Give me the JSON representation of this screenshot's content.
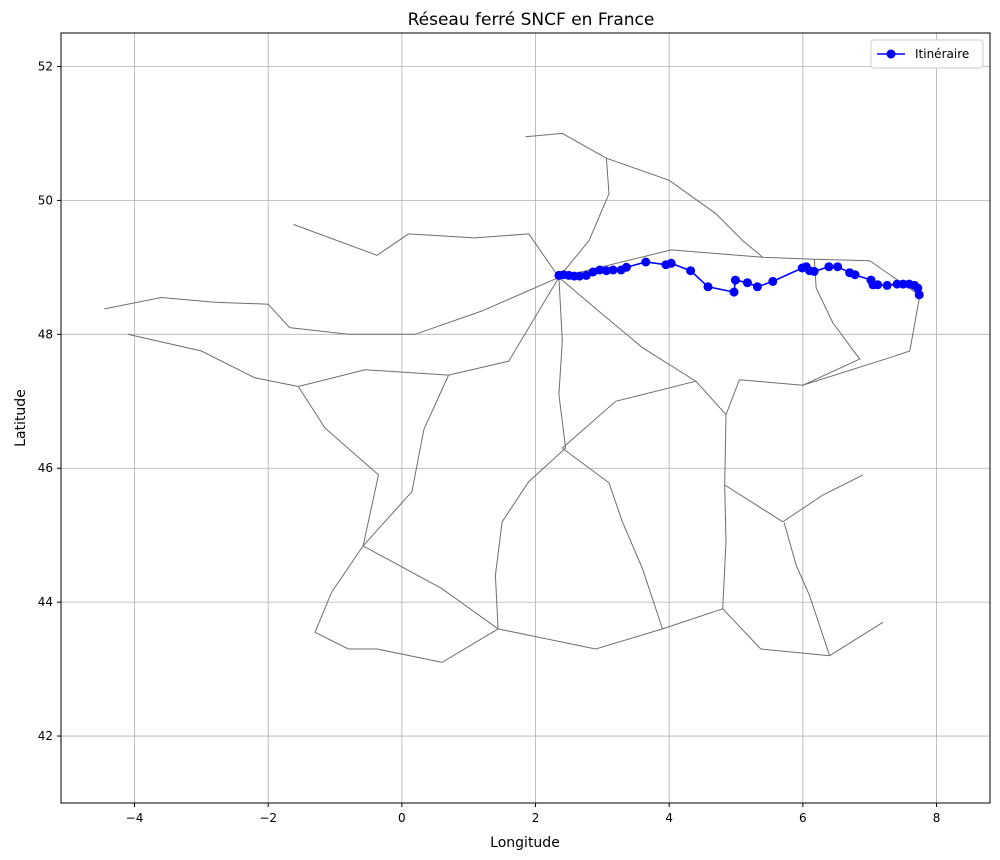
{
  "chart_data": {
    "type": "line",
    "title": "Réseau ferré SNCF en France",
    "xlabel": "Longitude",
    "ylabel": "Latitude",
    "xlim": [
      -5.1,
      8.8
    ],
    "ylim": [
      41.0,
      52.5
    ],
    "xticks": [
      -4,
      -2,
      0,
      2,
      4,
      6,
      8
    ],
    "yticks": [
      42,
      44,
      46,
      48,
      50,
      52
    ],
    "xtick_labels": [
      "−4",
      "−2",
      "0",
      "2",
      "4",
      "6",
      "8"
    ],
    "ytick_labels": [
      "42",
      "44",
      "46",
      "48",
      "50",
      "52"
    ],
    "grid": true,
    "legend_position": "top-right",
    "colors": {
      "network": "#6e6e6e",
      "route": "#0000ff",
      "grid": "#b0b0b0",
      "axis": "#000000"
    },
    "series": [
      {
        "name": "Itinéraire",
        "marker": "circle",
        "points": [
          [
            2.35,
            48.88
          ],
          [
            2.42,
            48.89
          ],
          [
            2.5,
            48.88
          ],
          [
            2.58,
            48.87
          ],
          [
            2.66,
            48.87
          ],
          [
            2.76,
            48.88
          ],
          [
            2.86,
            48.93
          ],
          [
            2.96,
            48.96
          ],
          [
            3.06,
            48.95
          ],
          [
            3.16,
            48.96
          ],
          [
            3.28,
            48.96
          ],
          [
            3.36,
            49.0
          ],
          [
            3.65,
            49.08
          ],
          [
            3.95,
            49.04
          ],
          [
            4.03,
            49.06
          ],
          [
            4.32,
            48.95
          ],
          [
            4.58,
            48.71
          ],
          [
            4.97,
            48.63
          ],
          [
            4.99,
            48.81
          ],
          [
            5.17,
            48.77
          ],
          [
            5.32,
            48.71
          ],
          [
            5.55,
            48.79
          ],
          [
            5.99,
            48.99
          ],
          [
            6.05,
            49.01
          ],
          [
            6.1,
            48.95
          ],
          [
            6.17,
            48.94
          ],
          [
            6.39,
            49.01
          ],
          [
            6.52,
            49.01
          ],
          [
            6.7,
            48.92
          ],
          [
            6.78,
            48.89
          ],
          [
            7.02,
            48.81
          ],
          [
            7.05,
            48.74
          ],
          [
            7.12,
            48.74
          ],
          [
            7.26,
            48.73
          ],
          [
            7.41,
            48.75
          ],
          [
            7.5,
            48.75
          ],
          [
            7.59,
            48.75
          ],
          [
            7.67,
            48.73
          ],
          [
            7.72,
            48.69
          ],
          [
            7.74,
            48.59
          ]
        ]
      }
    ]
  }
}
